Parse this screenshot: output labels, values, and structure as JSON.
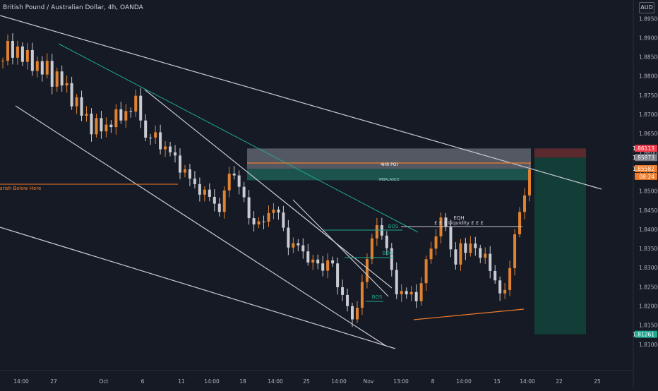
{
  "header": {
    "symbol": "British Pound / Australian Dollar, 4h, OANDA",
    "currency": "AUD"
  },
  "colors": {
    "background": "#161a25",
    "up_candle": "#e0822f",
    "down_candle": "#c9ccd3",
    "trendline": "#c8cbd1",
    "teal_line": "#1fa890",
    "orange_line": "#f07b2a",
    "stop_zone": "#5b2a2e",
    "target_zone": "#123e37",
    "poi_zone": "#6a6e78",
    "imbalance_zone": "#1d5a52",
    "last_price": "#f07b2a",
    "axis_text": "#b2b5be"
  },
  "chart_data": {
    "type": "candlestick",
    "title": "British Pound / Australian Dollar, 4h, OANDA",
    "ylim": [
      1.805,
      1.898
    ],
    "grid": false,
    "price_ticks": [
      "1.89500",
      "1.89000",
      "1.88500",
      "1.88000",
      "1.87500",
      "1.87000",
      "1.86500",
      "1.86000",
      "1.85500",
      "1.85000",
      "1.84500",
      "1.84000",
      "1.83500",
      "1.83000",
      "1.82500",
      "1.82000",
      "1.81500",
      "1.81000"
    ],
    "time_ticks": [
      "14:00",
      "27",
      "Oct",
      "6",
      "11",
      "14:00",
      "18",
      "14:00",
      "25",
      "14:00",
      "Nov",
      "13:00",
      "8",
      "14:00",
      "15",
      "14:00",
      "22",
      "25"
    ],
    "price_labels": [
      {
        "text": "1.86113",
        "price": 1.86113,
        "color": "#f23645"
      },
      {
        "text": "1.85873",
        "price": 1.85873,
        "color": "#787b86"
      },
      {
        "text": "1.85582",
        "price": 1.85582,
        "color": "#f07b2a"
      },
      {
        "text": "08:24",
        "price": 1.85382,
        "color": "#f07b2a"
      },
      {
        "text": "1.81261",
        "price": 1.81261,
        "color": "#1fa890"
      }
    ],
    "annotations": {
      "poi": "4HR POI",
      "imbalance": "IMBALANCE",
      "eqh": "EQH",
      "liquidity": "£ £ £ Liquidity £ £ £",
      "bearish": "Bearish Below Here",
      "bos": [
        "BOS",
        "BOS",
        "BOS"
      ]
    },
    "candle_path": [
      [
        0,
        1.884
      ],
      [
        3,
        1.888
      ],
      [
        6,
        1.885
      ],
      [
        9,
        1.889
      ],
      [
        12,
        1.883
      ],
      [
        15,
        1.886
      ],
      [
        18,
        1.882
      ],
      [
        21,
        1.885
      ],
      [
        24,
        1.879
      ],
      [
        27,
        1.884
      ],
      [
        30,
        1.878
      ],
      [
        33,
        1.882
      ],
      [
        36,
        1.876
      ],
      [
        39,
        1.879
      ],
      [
        42,
        1.873
      ],
      [
        45,
        1.875
      ],
      [
        48,
        1.868
      ],
      [
        51,
        1.872
      ],
      [
        54,
        1.865
      ],
      [
        57,
        1.869
      ],
      [
        60,
        1.864
      ],
      [
        63,
        1.869
      ],
      [
        66,
        1.866
      ],
      [
        69,
        1.871
      ],
      [
        72,
        1.867
      ],
      [
        75,
        1.873
      ],
      [
        78,
        1.869
      ],
      [
        81,
        1.875
      ],
      [
        84,
        1.87
      ],
      [
        87,
        1.866
      ],
      [
        90,
        1.862
      ],
      [
        93,
        1.866
      ],
      [
        96,
        1.861
      ],
      [
        99,
        1.864
      ],
      [
        102,
        1.858
      ],
      [
        105,
        1.861
      ],
      [
        108,
        1.855
      ],
      [
        111,
        1.858
      ],
      [
        114,
        1.851
      ],
      [
        117,
        1.854
      ],
      [
        120,
        1.849
      ],
      [
        123,
        1.852
      ],
      [
        126,
        1.846
      ],
      [
        129,
        1.85
      ],
      [
        132,
        1.844
      ],
      [
        135,
        1.847
      ],
      [
        138,
        1.852
      ],
      [
        141,
        1.857
      ],
      [
        144,
        1.853
      ],
      [
        147,
        1.849
      ],
      [
        150,
        1.845
      ],
      [
        153,
        1.841
      ],
      [
        156,
        1.844
      ],
      [
        159,
        1.839
      ],
      [
        162,
        1.843
      ],
      [
        165,
        1.847
      ],
      [
        168,
        1.845
      ],
      [
        171,
        1.842
      ],
      [
        174,
        1.838
      ],
      [
        177,
        1.835
      ],
      [
        180,
        1.838
      ],
      [
        183,
        1.832
      ],
      [
        186,
        1.836
      ],
      [
        189,
        1.83
      ],
      [
        192,
        1.833
      ],
      [
        195,
        1.828
      ],
      [
        198,
        1.831
      ],
      [
        201,
        1.834
      ],
      [
        204,
        1.828
      ],
      [
        207,
        1.822
      ],
      [
        210,
        1.825
      ],
      [
        213,
        1.818
      ],
      [
        216,
        1.814
      ],
      [
        219,
        1.822
      ],
      [
        222,
        1.83
      ],
      [
        225,
        1.833
      ],
      [
        228,
        1.838
      ],
      [
        231,
        1.843
      ],
      [
        234,
        1.838
      ],
      [
        237,
        1.833
      ],
      [
        240,
        1.827
      ],
      [
        243,
        1.823
      ],
      [
        246,
        1.825
      ],
      [
        249,
        1.821
      ],
      [
        252,
        1.824
      ],
      [
        255,
        1.822
      ],
      [
        258,
        1.827
      ],
      [
        261,
        1.832
      ],
      [
        264,
        1.836
      ],
      [
        267,
        1.84
      ],
      [
        270,
        1.843
      ],
      [
        273,
        1.839
      ],
      [
        276,
        1.835
      ],
      [
        279,
        1.831
      ],
      [
        282,
        1.836
      ],
      [
        285,
        1.833
      ],
      [
        288,
        1.838
      ],
      [
        291,
        1.835
      ],
      [
        294,
        1.831
      ],
      [
        297,
        1.834
      ],
      [
        300,
        1.83
      ],
      [
        303,
        1.826
      ],
      [
        306,
        1.822
      ],
      [
        309,
        1.825
      ],
      [
        312,
        1.831
      ],
      [
        315,
        1.838
      ],
      [
        318,
        1.844
      ],
      [
        321,
        1.85
      ],
      [
        324,
        1.856
      ]
    ]
  }
}
